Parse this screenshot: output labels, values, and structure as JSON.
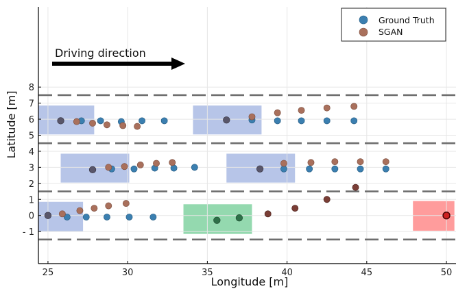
{
  "chart_data": {
    "type": "scatter",
    "xlabel": "Longitude [m]",
    "ylabel": "Latitude [m]",
    "xlim": [
      24.4,
      50.6
    ],
    "ylim": [
      -3,
      13
    ],
    "xticks": [
      25,
      30,
      35,
      40,
      45,
      50
    ],
    "yticks": [
      -1,
      0,
      1,
      2,
      3,
      4,
      5,
      6,
      7,
      8
    ],
    "ytick_labels": [
      "- 1",
      "0",
      "1",
      "2",
      "3",
      "4",
      "5",
      "6",
      "7",
      "8"
    ],
    "grid": true,
    "legend_position": "top-right",
    "lane_lines": [
      -1.5,
      1.5,
      4.5,
      7.5
    ],
    "annotation": "Driving direction",
    "vehicles": [
      {
        "kind": "blue",
        "x": [
          24.4,
          27.9
        ],
        "y": [
          5.05,
          6.85
        ]
      },
      {
        "kind": "blue",
        "x": [
          34.1,
          38.4
        ],
        "y": [
          5.05,
          6.85
        ]
      },
      {
        "kind": "blue",
        "x": [
          25.8,
          30.1
        ],
        "y": [
          2.05,
          3.85
        ]
      },
      {
        "kind": "blue",
        "x": [
          36.2,
          40.5
        ],
        "y": [
          2.05,
          3.85
        ]
      },
      {
        "kind": "blue",
        "x": [
          24.4,
          27.2
        ],
        "y": [
          -1.0,
          0.85
        ]
      },
      {
        "kind": "green",
        "x": [
          33.5,
          37.8
        ],
        "y": [
          -1.15,
          0.7
        ]
      },
      {
        "kind": "red",
        "x": [
          47.9,
          50.5
        ],
        "y": [
          -0.95,
          0.9
        ]
      }
    ],
    "series": [
      {
        "name": "Ground Truth",
        "color": "#3b7fb0",
        "x": [
          25.0,
          26.2,
          27.4,
          28.7,
          30.1,
          31.6,
          27.1,
          28.3,
          29.6,
          30.9,
          32.3,
          29.0,
          30.4,
          31.7,
          32.9,
          34.2,
          37.8,
          39.4,
          40.9,
          42.5,
          44.2,
          39.8,
          41.4,
          43.0,
          44.6,
          46.2
        ],
        "y": [
          0.0,
          -0.1,
          -0.1,
          -0.1,
          -0.1,
          -0.1,
          5.9,
          5.9,
          5.85,
          5.9,
          5.9,
          2.9,
          2.9,
          2.95,
          2.95,
          3.0,
          5.95,
          5.9,
          5.9,
          5.9,
          5.9,
          2.9,
          2.9,
          2.9,
          2.9,
          2.9
        ]
      },
      {
        "name": "SGAN",
        "color": "#a9705c",
        "x": [
          25.9,
          27.0,
          27.9,
          28.8,
          29.9,
          26.8,
          27.8,
          28.7,
          29.7,
          30.6,
          28.8,
          29.8,
          30.8,
          31.8,
          32.8,
          37.8,
          39.4,
          40.9,
          42.5,
          44.2,
          39.8,
          41.5,
          43.0,
          44.6,
          46.2
        ],
        "y": [
          0.1,
          0.3,
          0.45,
          0.6,
          0.75,
          5.85,
          5.75,
          5.65,
          5.6,
          5.55,
          3.0,
          3.05,
          3.15,
          3.25,
          3.3,
          6.15,
          6.4,
          6.55,
          6.7,
          6.8,
          3.25,
          3.3,
          3.35,
          3.35,
          3.35
        ]
      },
      {
        "x": [
          25.0,
          25.8,
          27.8,
          36.2,
          38.3
        ],
        "y": [
          0.0,
          5.9,
          2.85,
          5.95,
          2.9
        ]
      },
      {
        "x": [
          38.8,
          40.5,
          42.5,
          44.3
        ],
        "y": [
          0.1,
          0.45,
          1.0,
          1.75
        ]
      },
      {
        "x": [
          35.6,
          37.0
        ],
        "y": [
          -0.3,
          -0.15
        ]
      },
      {
        "x": [
          50.0
        ],
        "y": [
          0.0
        ]
      }
    ]
  }
}
